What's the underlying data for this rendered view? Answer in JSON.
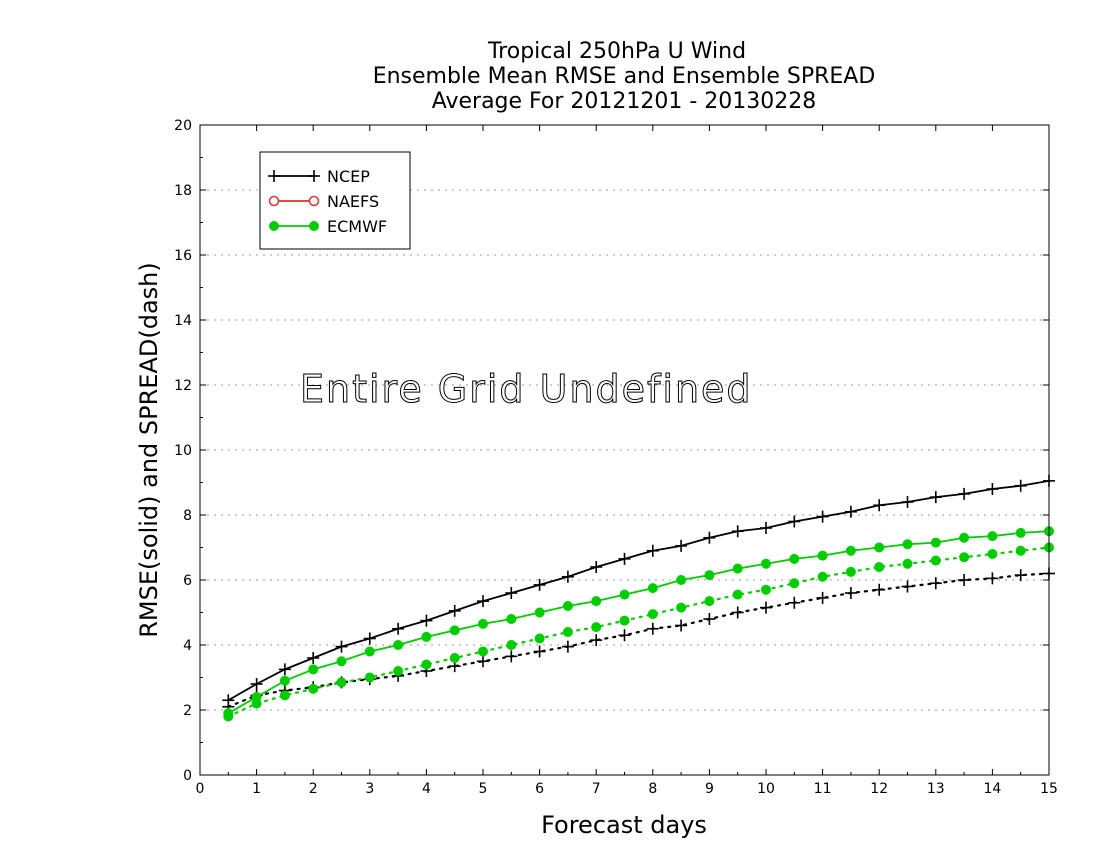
{
  "chart_data": {
    "type": "line",
    "title_lines": [
      "Tropical 250hPa U Wind",
      "Ensemble Mean RMSE and Ensemble SPREAD",
      "Average For 20121201 - 20130228"
    ],
    "xlabel": "Forecast days",
    "ylabel": "RMSE(solid) and SPREAD(dash)",
    "xlim": [
      0,
      15
    ],
    "ylim": [
      0,
      20
    ],
    "xticks": [
      "0",
      "1",
      "2",
      "3",
      "4",
      "5",
      "6",
      "7",
      "8",
      "9",
      "10",
      "11",
      "12",
      "13",
      "14",
      "15"
    ],
    "yticks": [
      "0",
      "2",
      "4",
      "6",
      "8",
      "10",
      "12",
      "14",
      "16",
      "18",
      "20"
    ],
    "grid": "horizontal dotted",
    "legend": {
      "placement": "top-left",
      "entries": [
        {
          "name": "NCEP",
          "color": "#000000",
          "marker": "plus"
        },
        {
          "name": "NAEFS",
          "color": "#e03030",
          "marker": "open-circle"
        },
        {
          "name": "ECMWF",
          "color": "#00cc00",
          "marker": "filled-circle"
        }
      ]
    },
    "annotation": "Entire Grid Undefined",
    "x": [
      0.5,
      1,
      1.5,
      2,
      2.5,
      3,
      3.5,
      4,
      4.5,
      5,
      5.5,
      6,
      6.5,
      7,
      7.5,
      8,
      8.5,
      9,
      9.5,
      10,
      10.5,
      11,
      11.5,
      12,
      12.5,
      13,
      13.5,
      14,
      14.5,
      15
    ],
    "series": [
      {
        "name": "NCEP",
        "kind": "RMSE",
        "style": "solid",
        "color": "#000000",
        "marker": "plus",
        "values": [
          2.3,
          2.8,
          3.25,
          3.6,
          3.95,
          4.2,
          4.5,
          4.75,
          5.05,
          5.35,
          5.6,
          5.85,
          6.1,
          6.4,
          6.65,
          6.9,
          7.05,
          7.3,
          7.5,
          7.6,
          7.8,
          7.95,
          8.1,
          8.3,
          8.4,
          8.55,
          8.65,
          8.8,
          8.9,
          9.05
        ]
      },
      {
        "name": "NCEP",
        "kind": "SPREAD",
        "style": "dash",
        "color": "#000000",
        "marker": "plus",
        "values": [
          2.1,
          2.45,
          2.6,
          2.7,
          2.85,
          2.95,
          3.05,
          3.2,
          3.35,
          3.5,
          3.65,
          3.8,
          3.95,
          4.15,
          4.3,
          4.5,
          4.6,
          4.8,
          5.0,
          5.15,
          5.3,
          5.45,
          5.6,
          5.7,
          5.8,
          5.9,
          6.0,
          6.05,
          6.15,
          6.2
        ]
      },
      {
        "name": "ECMWF",
        "kind": "RMSE",
        "style": "solid",
        "color": "#00cc00",
        "marker": "filled-circle",
        "values": [
          1.9,
          2.4,
          2.9,
          3.25,
          3.5,
          3.8,
          4.0,
          4.25,
          4.45,
          4.65,
          4.8,
          5.0,
          5.2,
          5.35,
          5.55,
          5.75,
          6.0,
          6.15,
          6.35,
          6.5,
          6.65,
          6.75,
          6.9,
          7.0,
          7.1,
          7.15,
          7.3,
          7.35,
          7.45,
          7.5
        ]
      },
      {
        "name": "ECMWF",
        "kind": "SPREAD",
        "style": "dash",
        "color": "#00cc00",
        "marker": "filled-circle",
        "values": [
          1.8,
          2.2,
          2.45,
          2.65,
          2.85,
          3.0,
          3.2,
          3.4,
          3.6,
          3.8,
          4.0,
          4.2,
          4.4,
          4.55,
          4.75,
          4.95,
          5.15,
          5.35,
          5.55,
          5.7,
          5.9,
          6.1,
          6.25,
          6.4,
          6.5,
          6.6,
          6.7,
          6.8,
          6.9,
          7.0
        ]
      }
    ]
  }
}
